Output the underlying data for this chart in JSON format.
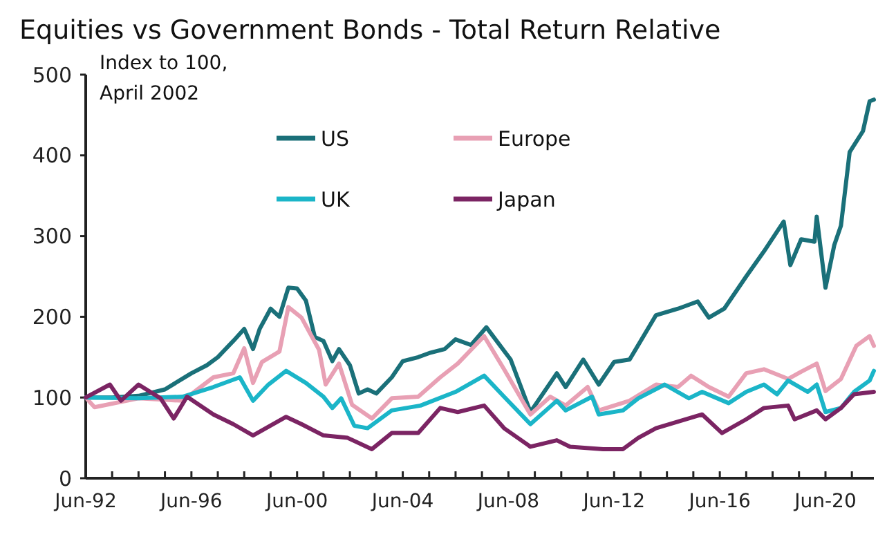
{
  "chart_data": {
    "type": "line",
    "title": "Equities vs Government Bonds - Total Return Relative",
    "ylabel": "Index to 100, April 2002",
    "xlim": [
      "1992-06",
      "2022-04"
    ],
    "ylim": [
      0,
      500
    ],
    "yticks": [
      0,
      100,
      200,
      300,
      400,
      500
    ],
    "xticks": [
      {
        "value": "1992-06",
        "label": "Jun-92"
      },
      {
        "value": "1993-06",
        "label": null
      },
      {
        "value": "1994-06",
        "label": null
      },
      {
        "value": "1995-06",
        "label": null
      },
      {
        "value": "1996-06",
        "label": "Jun-96"
      },
      {
        "value": "1997-06",
        "label": null
      },
      {
        "value": "1998-06",
        "label": null
      },
      {
        "value": "1999-06",
        "label": null
      },
      {
        "value": "2000-06",
        "label": "Jun-00"
      },
      {
        "value": "2001-06",
        "label": null
      },
      {
        "value": "2002-06",
        "label": null
      },
      {
        "value": "2003-06",
        "label": null
      },
      {
        "value": "2004-06",
        "label": "Jun-04"
      },
      {
        "value": "2005-06",
        "label": null
      },
      {
        "value": "2006-06",
        "label": null
      },
      {
        "value": "2007-06",
        "label": null
      },
      {
        "value": "2008-06",
        "label": "Jun-08"
      },
      {
        "value": "2009-06",
        "label": null
      },
      {
        "value": "2010-06",
        "label": null
      },
      {
        "value": "2011-06",
        "label": null
      },
      {
        "value": "2012-06",
        "label": "Jun-12"
      },
      {
        "value": "2013-06",
        "label": null
      },
      {
        "value": "2014-06",
        "label": null
      },
      {
        "value": "2015-06",
        "label": null
      },
      {
        "value": "2016-06",
        "label": "Jun-16"
      },
      {
        "value": "2017-06",
        "label": null
      },
      {
        "value": "2018-06",
        "label": null
      },
      {
        "value": "2019-06",
        "label": null
      },
      {
        "value": "2020-06",
        "label": "Jun-20"
      },
      {
        "value": "2021-06",
        "label": null
      }
    ],
    "grid": false,
    "legend": "top",
    "marker": "none",
    "line_style": "solid",
    "series": [
      {
        "name": "US",
        "color": "#1a7079",
        "x": [
          "1992-06",
          "1993-06",
          "1994-06",
          "1995-06",
          "1996-06",
          "1997-01",
          "1997-06",
          "1998-01",
          "1998-06",
          "1998-10",
          "1999-01",
          "1999-06",
          "1999-10",
          "2000-02",
          "2000-06",
          "2000-10",
          "2001-02",
          "2001-06",
          "2001-10",
          "2002-01",
          "2002-06",
          "2002-10",
          "2003-02",
          "2003-06",
          "2004-01",
          "2004-06",
          "2005-01",
          "2005-06",
          "2006-01",
          "2006-06",
          "2007-01",
          "2007-08",
          "2008-07",
          "2009-04",
          "2010-04",
          "2010-08",
          "2011-04",
          "2011-11",
          "2012-06",
          "2013-01",
          "2014-01",
          "2014-11",
          "2015-08",
          "2016-01",
          "2016-08",
          "2017-06",
          "2018-02",
          "2018-11",
          "2019-02",
          "2019-07",
          "2020-01",
          "2020-02",
          "2020-06",
          "2020-10",
          "2021-01",
          "2021-05",
          "2021-11",
          "2022-02",
          "2022-04"
        ],
        "values": [
          100,
          100,
          102,
          110,
          130,
          140,
          150,
          170,
          185,
          160,
          185,
          210,
          200,
          236,
          235,
          220,
          175,
          170,
          145,
          160,
          140,
          105,
          110,
          105,
          125,
          145,
          150,
          155,
          160,
          172,
          165,
          187,
          147,
          82,
          130,
          113,
          147,
          116,
          144,
          147,
          202,
          210,
          219,
          199,
          210,
          250,
          281,
          318,
          264,
          296,
          293,
          324,
          236,
          289,
          313,
          404,
          430,
          467,
          469
        ]
      },
      {
        "name": "Europe",
        "color": "#e8a0b4",
        "x": [
          "1992-06",
          "1992-10",
          "1994-06",
          "1996-02",
          "1997-04",
          "1998-01",
          "1998-06",
          "1998-10",
          "1999-02",
          "1999-10",
          "2000-02",
          "2000-08",
          "2001-04",
          "2001-07",
          "2002-01",
          "2002-07",
          "2003-04",
          "2004-01",
          "2005-01",
          "2005-11",
          "2006-07",
          "2007-07",
          "2008-04",
          "2009-04",
          "2010-01",
          "2010-08",
          "2011-06",
          "2011-11",
          "2013-01",
          "2014-01",
          "2014-11",
          "2015-05",
          "2016-01",
          "2016-10",
          "2017-06",
          "2018-02",
          "2019-01",
          "2019-07",
          "2020-02",
          "2020-06",
          "2021-01",
          "2021-08",
          "2022-02",
          "2022-04"
        ],
        "values": [
          100,
          88,
          99,
          96,
          125,
          130,
          161,
          118,
          144,
          157,
          212,
          199,
          159,
          116,
          142,
          91,
          74,
          99,
          101,
          125,
          142,
          176,
          135,
          79,
          101,
          90,
          113,
          84,
          96,
          116,
          113,
          127,
          113,
          101,
          130,
          135,
          123,
          132,
          142,
          108,
          123,
          164,
          176,
          164
        ]
      },
      {
        "name": "UK",
        "color": "#1bb5c8",
        "x": [
          "1992-06",
          "1994-06",
          "1996-02",
          "1997-04",
          "1998-04",
          "1998-10",
          "1999-05",
          "2000-01",
          "2000-10",
          "2001-06",
          "2001-10",
          "2002-02",
          "2002-08",
          "2003-02",
          "2004-01",
          "2005-02",
          "2006-06",
          "2007-07",
          "2008-04",
          "2009-04",
          "2010-04",
          "2010-08",
          "2011-08",
          "2011-11",
          "2012-10",
          "2013-05",
          "2014-05",
          "2015-04",
          "2015-10",
          "2016-10",
          "2017-06",
          "2018-02",
          "2018-08",
          "2019-01",
          "2019-10",
          "2020-02",
          "2020-06",
          "2021-01",
          "2021-07",
          "2022-02",
          "2022-04"
        ],
        "values": [
          100,
          99,
          101,
          113,
          125,
          96,
          116,
          133,
          118,
          101,
          87,
          99,
          65,
          62,
          84,
          90,
          107,
          127,
          101,
          67,
          96,
          84,
          101,
          79,
          84,
          99,
          116,
          99,
          107,
          93,
          107,
          116,
          104,
          121,
          107,
          116,
          82,
          87,
          107,
          121,
          133
        ]
      },
      {
        "name": "Japan",
        "color": "#7b2463",
        "x": [
          "1992-06",
          "1993-05",
          "1993-10",
          "1994-06",
          "1995-04",
          "1995-10",
          "1996-04",
          "1997-04",
          "1998-01",
          "1998-10",
          "2000-01",
          "2000-08",
          "2001-06",
          "2002-05",
          "2003-04",
          "2004-01",
          "2005-01",
          "2005-11",
          "2006-07",
          "2007-07",
          "2008-04",
          "2009-04",
          "2010-04",
          "2010-10",
          "2012-01",
          "2012-10",
          "2013-05",
          "2014-01",
          "2015-10",
          "2016-07",
          "2017-06",
          "2018-02",
          "2019-01",
          "2019-04",
          "2020-02",
          "2020-06",
          "2021-01",
          "2021-07",
          "2022-04"
        ],
        "values": [
          100,
          116,
          96,
          116,
          99,
          74,
          101,
          79,
          67,
          53,
          76,
          67,
          53,
          50,
          36,
          56,
          56,
          87,
          82,
          90,
          62,
          39,
          47,
          39,
          36,
          36,
          50,
          62,
          79,
          56,
          73,
          87,
          90,
          73,
          84,
          73,
          87,
          104,
          107
        ]
      }
    ]
  }
}
